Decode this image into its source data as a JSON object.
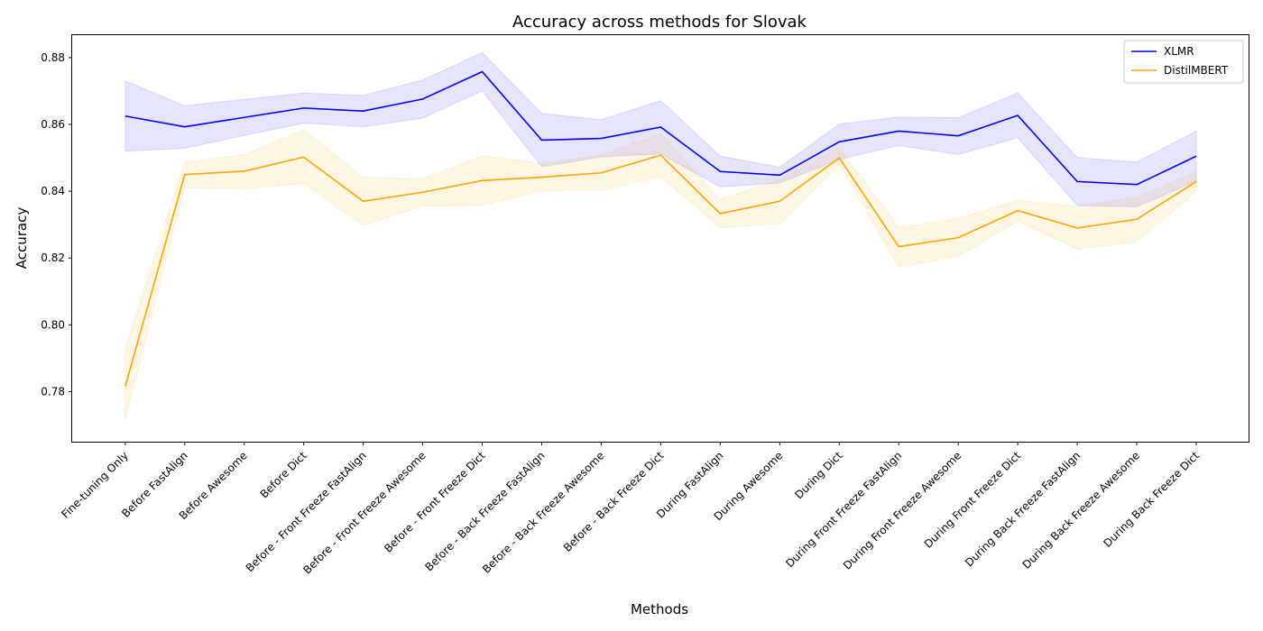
{
  "chart_data": {
    "type": "line",
    "title": "Accuracy across methods for Slovak",
    "xlabel": "Methods",
    "ylabel": "Accuracy",
    "ylim": [
      0.765,
      0.887
    ],
    "yticks": [
      0.78,
      0.8,
      0.82,
      0.84,
      0.86,
      0.88
    ],
    "ytick_labels": [
      "0.78",
      "0.80",
      "0.82",
      "0.84",
      "0.86",
      "0.88"
    ],
    "legend_position": "top-right",
    "grid": false,
    "categories": [
      "Fine-tuning Only",
      "Before FastAlign",
      "Before Awesome",
      "Before Dict",
      "Before - Front Freeze FastAlign",
      "Before - Front Freeze Awesome",
      "Before - Front Freeze Dict",
      "Before - Back Freeze FastAlign",
      "Before - Back Freeze Awesome",
      "Before - Back Freeze Dict",
      "During FastAlign",
      "During Awesome",
      "During Dict",
      "During Front Freeze FastAlign",
      "During Front Freeze Awesome",
      "During Front Freeze Dict",
      "During Back Freeze FastAlign",
      "During Back Freeze Awesome",
      "During Back Freeze Dict"
    ],
    "series": [
      {
        "name": "XLMR",
        "color": "#0000ff",
        "band_color": "#0000ff",
        "values": [
          0.8625,
          0.8593,
          0.8621,
          0.8649,
          0.864,
          0.8676,
          0.8758,
          0.8553,
          0.8558,
          0.8592,
          0.8459,
          0.8448,
          0.8548,
          0.858,
          0.8566,
          0.8627,
          0.8429,
          0.842,
          0.8505
        ],
        "lower": [
          0.852,
          0.8529,
          0.8567,
          0.8604,
          0.8593,
          0.8619,
          0.8701,
          0.8473,
          0.8503,
          0.8512,
          0.8413,
          0.8425,
          0.8495,
          0.8537,
          0.851,
          0.856,
          0.8357,
          0.8353,
          0.8431
        ],
        "upper": [
          0.873,
          0.8656,
          0.8675,
          0.8694,
          0.8687,
          0.8733,
          0.8815,
          0.8633,
          0.8614,
          0.8671,
          0.8505,
          0.8472,
          0.8601,
          0.8622,
          0.862,
          0.8694,
          0.8501,
          0.8487,
          0.858
        ]
      },
      {
        "name": "DistilMBERT",
        "color": "#ffa500",
        "band_color": "#ffa500",
        "values": [
          0.7815,
          0.845,
          0.846,
          0.8502,
          0.837,
          0.8397,
          0.8432,
          0.8442,
          0.8455,
          0.8508,
          0.8333,
          0.837,
          0.85,
          0.8234,
          0.8261,
          0.8342,
          0.829,
          0.8316,
          0.8429
        ],
        "lower": [
          0.7715,
          0.841,
          0.8407,
          0.8423,
          0.8298,
          0.8356,
          0.8358,
          0.8401,
          0.8403,
          0.8443,
          0.8291,
          0.8303,
          0.848,
          0.8173,
          0.8205,
          0.8311,
          0.8226,
          0.8249,
          0.84
        ],
        "upper": [
          0.793,
          0.8487,
          0.851,
          0.8583,
          0.8442,
          0.8437,
          0.8506,
          0.8483,
          0.8509,
          0.8573,
          0.8375,
          0.8435,
          0.853,
          0.8292,
          0.8318,
          0.8373,
          0.8354,
          0.8382,
          0.8458
        ]
      }
    ]
  }
}
